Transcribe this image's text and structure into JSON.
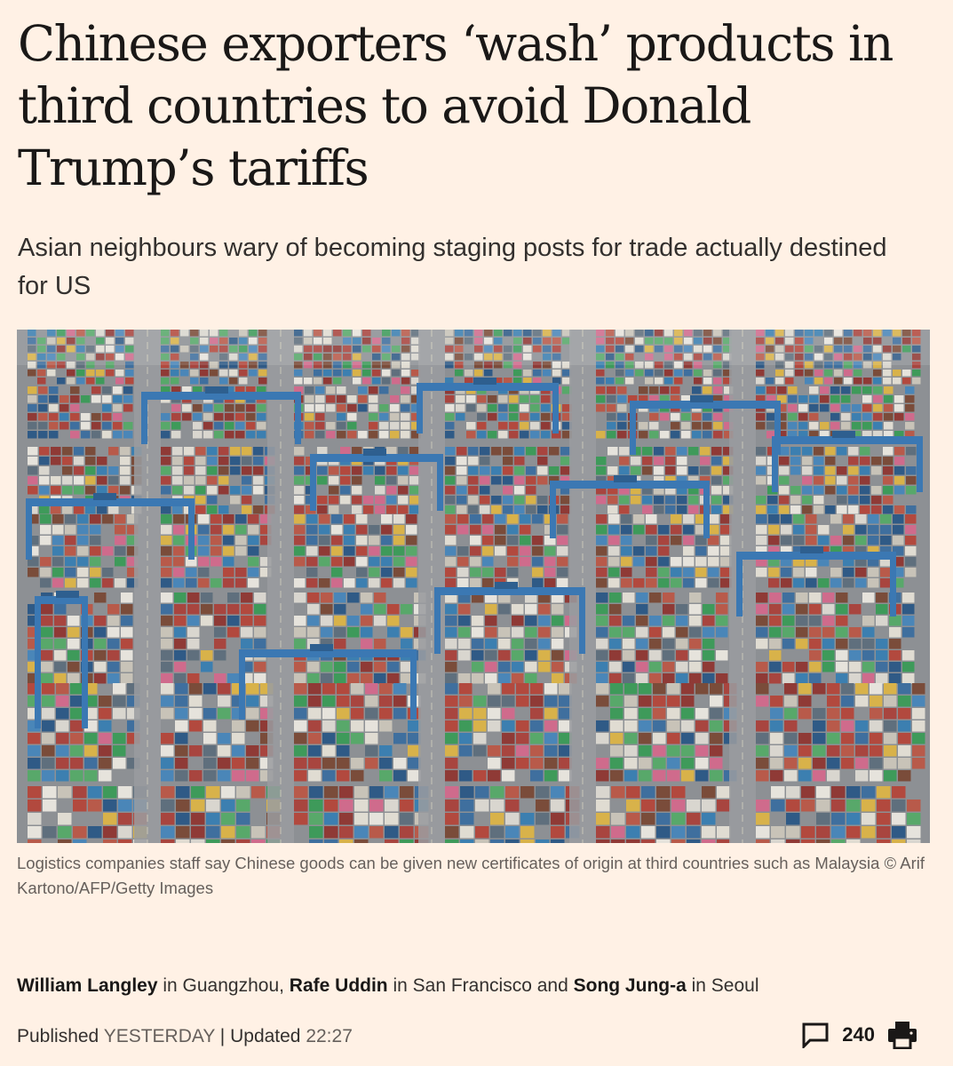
{
  "article": {
    "headline": "Chinese exporters ‘wash’ products in third countries to avoid Donald Trump’s tariffs",
    "standfirst": "Asian neighbours wary of becoming staging posts for trade actually destined for US",
    "image": {
      "caption": "Logistics companies staff say Chinese goods can be given new certificates of origin at third countries such as Malaysia © Arif Kartono/AFP/Getty Images",
      "subject": "aerial view of a container port terminal with stacked shipping containers and blue gantry cranes"
    },
    "byline": {
      "authors": [
        {
          "name": "William Langley",
          "location_prefix": " in ",
          "location": "Guangzhou"
        },
        {
          "name": "Rafe Uddin",
          "location_prefix": " in ",
          "location": "San Francisco"
        },
        {
          "name": "Song Jung-a",
          "location_prefix": " in ",
          "location": "Seoul"
        }
      ],
      "separator_1": ", ",
      "separator_2": " and "
    },
    "meta": {
      "published_label": "Published ",
      "published_value": "YESTERDAY",
      "divider": " | ",
      "updated_label": "Updated ",
      "updated_value": "22:27"
    },
    "tools": {
      "comment_icon": "speech-bubble-icon",
      "comment_count": "240",
      "print_icon": "printer-icon"
    }
  },
  "colors": {
    "page_background": "#fff1e5",
    "headline_text": "#1a1817",
    "body_text": "#33302e",
    "muted_text": "#66605c",
    "crane_blue": "#3b78b3"
  }
}
